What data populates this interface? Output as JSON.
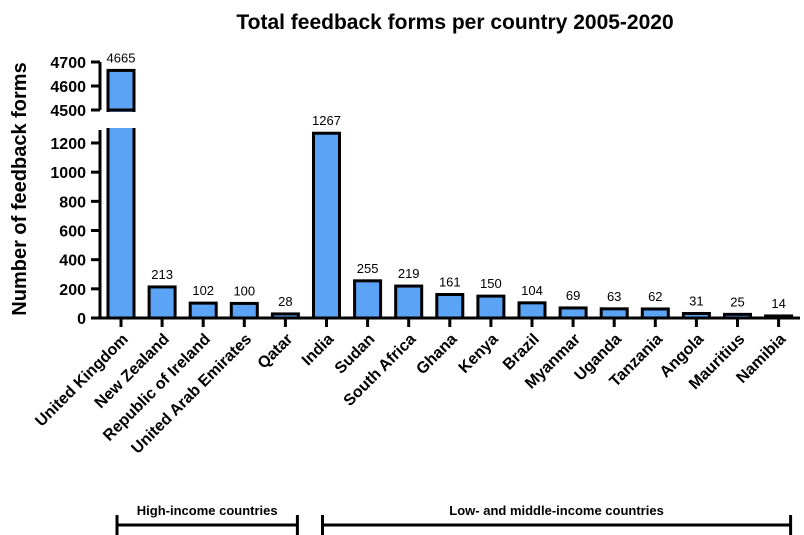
{
  "chart_data": {
    "type": "bar",
    "title": "Total feedback forms per country 2005-2020",
    "xlabel": "",
    "ylabel": "Number of feedback forms",
    "categories": [
      "United Kingdom",
      "New Zealand",
      "Republic of Ireland",
      "United Arab Emirates",
      "Qatar",
      "India",
      "Sudan",
      "South Africa",
      "Ghana",
      "Kenya",
      "Brazil",
      "Myanmar",
      "Uganda",
      "Tanzania",
      "Angola",
      "Mauritius",
      "Namibia"
    ],
    "values": [
      4665,
      213,
      102,
      100,
      28,
      1267,
      255,
      219,
      161,
      150,
      104,
      69,
      63,
      62,
      31,
      25,
      14
    ],
    "data_labels": [
      "4665",
      "213",
      "102",
      "100",
      "28",
      "1267",
      "255",
      "219",
      "161",
      "150",
      "104",
      "69",
      "63",
      "62",
      "31",
      "25",
      "14"
    ],
    "broken_axis": {
      "lower_range": [
        0,
        1300
      ],
      "upper_range": [
        4500,
        4700
      ],
      "lower_ticks": [
        "0",
        "200",
        "400",
        "600",
        "800",
        "1000",
        "1200"
      ],
      "upper_ticks": [
        "4500",
        "4600",
        "4700"
      ]
    },
    "bar_color": "#5ba3f5",
    "bar_edge_color": "#000000",
    "grid": false,
    "groups": [
      {
        "label": "High-income countries",
        "from_index": 0,
        "to_index": 4
      },
      {
        "label": "Low- and middle-income countries",
        "from_index": 5,
        "to_index": 16
      }
    ]
  }
}
